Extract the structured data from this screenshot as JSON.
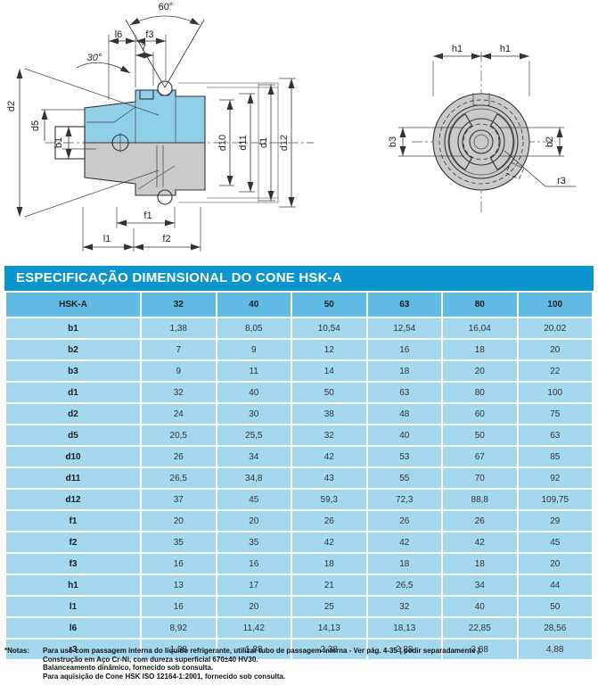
{
  "drawing": {
    "labels": {
      "angle_60": "60°",
      "l6": "l6",
      "f3": "f3",
      "seven": "7",
      "angle_30": "30°",
      "d2": "d2",
      "d5": "d5",
      "b1": "b1",
      "d10": "d10",
      "d11": "d11",
      "d1": "d1",
      "d12": "d12",
      "f1": "f1",
      "l1": "l1",
      "f2": "f2",
      "h1_left": "h1",
      "h1_right": "h1",
      "b3": "b3",
      "b2": "b2",
      "r3": "r3"
    }
  },
  "table": {
    "title": "ESPECIFICAÇÃO DIMENSIONAL DO CONE HSK-A",
    "header": [
      "HSK-A",
      "32",
      "40",
      "50",
      "63",
      "80",
      "100"
    ],
    "rows": [
      {
        "label": "b1",
        "values": [
          "1,38",
          "8,05",
          "10,54",
          "12,54",
          "16,04",
          "20,02"
        ]
      },
      {
        "label": "b2",
        "values": [
          "7",
          "9",
          "12",
          "16",
          "18",
          "20"
        ]
      },
      {
        "label": "b3",
        "values": [
          "9",
          "11",
          "14",
          "18",
          "20",
          "22"
        ]
      },
      {
        "label": "d1",
        "values": [
          "32",
          "40",
          "50",
          "63",
          "80",
          "100"
        ]
      },
      {
        "label": "d2",
        "values": [
          "24",
          "30",
          "38",
          "48",
          "60",
          "75"
        ]
      },
      {
        "label": "d5",
        "values": [
          "20,5",
          "25,5",
          "32",
          "40",
          "50",
          "63"
        ]
      },
      {
        "label": "d10",
        "values": [
          "26",
          "34",
          "42",
          "53",
          "67",
          "85"
        ]
      },
      {
        "label": "d11",
        "values": [
          "26,5",
          "34,8",
          "43",
          "55",
          "70",
          "92"
        ]
      },
      {
        "label": "d12",
        "values": [
          "37",
          "45",
          "59,3",
          "72,3",
          "88,8",
          "109,75"
        ]
      },
      {
        "label": "f1",
        "values": [
          "20",
          "20",
          "26",
          "26",
          "26",
          "29"
        ]
      },
      {
        "label": "f2",
        "values": [
          "35",
          "35",
          "42",
          "42",
          "42",
          "45"
        ]
      },
      {
        "label": "f3",
        "values": [
          "16",
          "16",
          "18",
          "18",
          "18",
          "20"
        ]
      },
      {
        "label": "h1",
        "values": [
          "13",
          "17",
          "21",
          "26,5",
          "34",
          "44"
        ]
      },
      {
        "label": "l1",
        "values": [
          "16",
          "20",
          "25",
          "32",
          "40",
          "50"
        ]
      },
      {
        "label": "l6",
        "values": [
          "8,92",
          "11,42",
          "14,13",
          "18,13",
          "22,85",
          "28,56"
        ]
      },
      {
        "label": "r3",
        "values": [
          "1,38",
          "1,88",
          "2,38",
          "2,88",
          "3,88",
          "4,88"
        ]
      }
    ]
  },
  "notes": {
    "label": "*Notas:",
    "lines": [
      "Para uso com passagem interna do líquido refrigerante, utilizar tubo de passagem interna  - Ver pág. 4-35 ( pedir separadamente ).",
      "Construção em Aço Cr-Ni, com dureza superficial 670±40 HV30.",
      "Balanceamento dinâmico, fornecido sob consulta.",
      "Para aquisição de Cone HSK ISO 12164-1:2001, fornecido sob consulta."
    ]
  },
  "colors": {
    "title_bg": "#0b95cf",
    "header_bg": "#62bbe3",
    "row_bg": "#a3d8ee",
    "drawing_highlight": "#8fd0e8",
    "drawing_gray": "#c9cacb"
  }
}
